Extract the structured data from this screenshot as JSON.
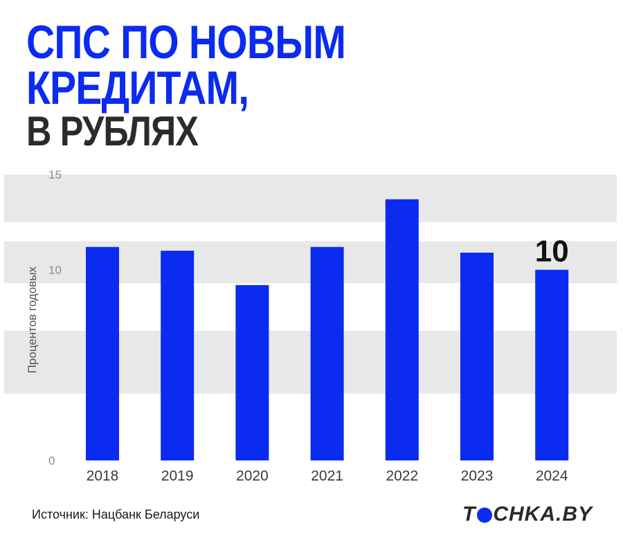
{
  "title": {
    "line1": "СПС ПО НОВЫМ",
    "line2": "КРЕДИТАМ,",
    "line3": "В РУБЛЯХ"
  },
  "colors": {
    "accent": "#0b2bf0",
    "dark_text": "#2b2b2b",
    "band": "#e8e8e9"
  },
  "chart_data": {
    "type": "bar",
    "categories": [
      "2018",
      "2019",
      "2020",
      "2021",
      "2022",
      "2023",
      "2024"
    ],
    "values": [
      11.2,
      11.0,
      9.2,
      11.2,
      13.7,
      10.9,
      10.0
    ],
    "ylabel": "Процентов годовых",
    "xlabel": "",
    "ylim": [
      0,
      15
    ],
    "y_ticks": [
      0,
      10,
      15
    ],
    "data_labels": [
      {
        "category": "2024",
        "text": "10"
      }
    ],
    "bar_color": "#0b2bf0",
    "grid": "alternating horizontal bands",
    "legend": "none"
  },
  "footer": {
    "source": "Источник: Нацбанк Беларуси",
    "logo_left": "T",
    "logo_right": "CHKA.BY",
    "logo_icon": "blue-circle-o"
  }
}
